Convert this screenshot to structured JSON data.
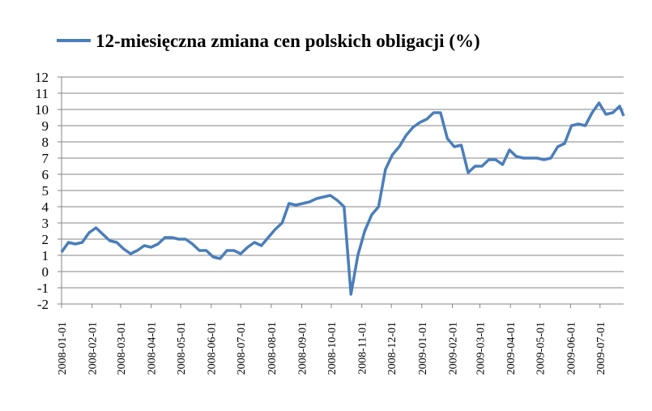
{
  "chart_data": {
    "type": "line",
    "x": [
      "2008-01-01",
      "2008-01-08",
      "2008-01-15",
      "2008-01-22",
      "2008-01-29",
      "2008-02-05",
      "2008-02-12",
      "2008-02-19",
      "2008-02-26",
      "2008-03-04",
      "2008-03-11",
      "2008-03-18",
      "2008-03-25",
      "2008-04-01",
      "2008-04-08",
      "2008-04-15",
      "2008-04-22",
      "2008-04-29",
      "2008-05-06",
      "2008-05-13",
      "2008-05-20",
      "2008-05-27",
      "2008-06-03",
      "2008-06-10",
      "2008-06-17",
      "2008-06-24",
      "2008-07-01",
      "2008-07-08",
      "2008-07-15",
      "2008-07-22",
      "2008-07-29",
      "2008-08-05",
      "2008-08-12",
      "2008-08-19",
      "2008-08-26",
      "2008-09-02",
      "2008-09-09",
      "2008-09-16",
      "2008-09-23",
      "2008-09-30",
      "2008-10-07",
      "2008-10-14",
      "2008-10-21",
      "2008-10-28",
      "2008-11-04",
      "2008-11-11",
      "2008-11-18",
      "2008-11-25",
      "2008-12-02",
      "2008-12-09",
      "2008-12-16",
      "2008-12-23",
      "2008-12-30",
      "2009-01-06",
      "2009-01-13",
      "2009-01-20",
      "2009-01-27",
      "2009-02-03",
      "2009-02-10",
      "2009-02-17",
      "2009-02-24",
      "2009-03-03",
      "2009-03-10",
      "2009-03-17",
      "2009-03-24",
      "2009-03-31",
      "2009-04-07",
      "2009-04-14",
      "2009-04-21",
      "2009-04-28",
      "2009-05-05",
      "2009-05-12",
      "2009-05-19",
      "2009-05-26",
      "2009-06-02",
      "2009-06-09",
      "2009-06-16",
      "2009-06-23",
      "2009-06-30",
      "2009-07-07",
      "2009-07-14",
      "2009-07-21",
      "2009-07-25"
    ],
    "series": [
      {
        "name": "12-miesięczna zmiana cen polskich obligacji (%)",
        "color": "#4a7ebb",
        "values": [
          1.2,
          1.8,
          1.7,
          1.8,
          2.4,
          2.7,
          2.3,
          1.9,
          1.8,
          1.4,
          1.1,
          1.3,
          1.6,
          1.5,
          1.7,
          2.1,
          2.1,
          2.0,
          2.0,
          1.7,
          1.3,
          1.3,
          0.9,
          0.8,
          1.3,
          1.3,
          1.1,
          1.5,
          1.8,
          1.6,
          2.1,
          2.6,
          3.0,
          4.2,
          4.1,
          4.2,
          4.3,
          4.5,
          4.6,
          4.7,
          4.4,
          4.0,
          -1.4,
          1.0,
          2.5,
          3.5,
          4.0,
          6.3,
          7.2,
          7.7,
          8.4,
          8.9,
          9.2,
          9.4,
          9.8,
          9.8,
          8.2,
          7.7,
          7.8,
          6.1,
          6.5,
          6.5,
          6.9,
          6.9,
          6.6,
          7.5,
          7.1,
          7.0,
          7.0,
          7.0,
          6.9,
          7.0,
          7.7,
          7.9,
          9.0,
          9.1,
          9.0,
          9.8,
          10.4,
          9.7,
          9.8,
          10.2,
          9.6
        ]
      }
    ],
    "xlim": [
      "2008-01-01",
      "2009-07-25"
    ],
    "xticks": [
      "2008-01-01",
      "2008-02-01",
      "2008-03-01",
      "2008-04-01",
      "2008-05-01",
      "2008-06-01",
      "2008-07-01",
      "2008-08-01",
      "2008-09-01",
      "2008-10-01",
      "2008-11-01",
      "2008-12-01",
      "2009-01-01",
      "2009-02-01",
      "2009-03-01",
      "2009-04-01",
      "2009-05-01",
      "2009-06-01",
      "2009-07-01"
    ],
    "ylim": [
      -2,
      12
    ],
    "yticks": [
      -2,
      -1,
      0,
      1,
      2,
      3,
      4,
      5,
      6,
      7,
      8,
      9,
      10,
      11,
      12
    ],
    "grid": true,
    "legend": "top"
  }
}
